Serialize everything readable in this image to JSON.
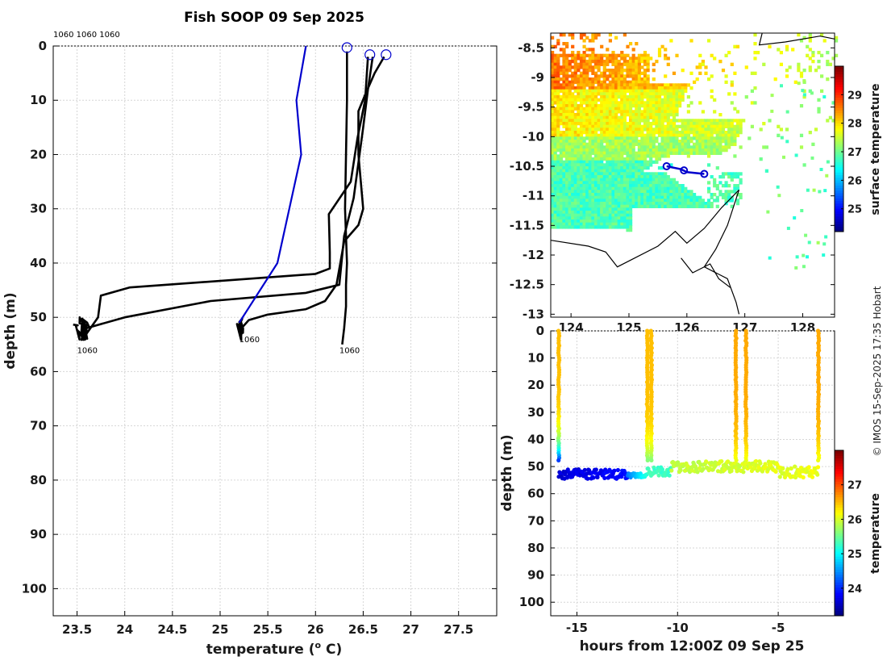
{
  "title": "Fish SOOP 09 Sep 2025",
  "credit": "© IMOS 15-Sep-2025 17:35 Hobart",
  "chart_data": [
    {
      "type": "line",
      "name": "temperature-profiles",
      "xlabel": "temperature (o C)",
      "xlabel_main": "temperature (",
      "xlabel_sup": "o",
      "xlabel_end": " C)",
      "ylabel": "depth (m)",
      "xlim": [
        23.25,
        27.9
      ],
      "ylim": [
        105,
        0
      ],
      "xticks": [
        "23.5",
        "24",
        "24.5",
        "25",
        "25.5",
        "26",
        "26.5",
        "27",
        "27.5"
      ],
      "yticks": [
        "0",
        "10",
        "20",
        "30",
        "40",
        "50",
        "60",
        "70",
        "80",
        "90",
        "100"
      ],
      "top_labels": "1060 1060 1060",
      "grid": true,
      "series": [
        {
          "name": "profile-1",
          "color": "#000000",
          "points": [
            [
              26.33,
              1
            ],
            [
              26.33,
              5
            ],
            [
              26.33,
              10
            ],
            [
              26.32,
              20
            ],
            [
              26.31,
              30
            ],
            [
              26.33,
              40
            ],
            [
              26.32,
              44
            ],
            [
              26.32,
              48
            ],
            [
              26.3,
              52
            ],
            [
              26.28,
              55
            ]
          ]
        },
        {
          "name": "profile-2",
          "color": "#000000",
          "points": [
            [
              26.55,
              2
            ],
            [
              26.52,
              10
            ],
            [
              26.44,
              17
            ],
            [
              26.37,
              25
            ],
            [
              26.14,
              31
            ],
            [
              26.15,
              38
            ],
            [
              26.15,
              41
            ],
            [
              26.0,
              42
            ],
            [
              24.05,
              44.5
            ],
            [
              23.75,
              46
            ],
            [
              23.72,
              50
            ],
            [
              23.6,
              53
            ],
            [
              23.48,
              55
            ]
          ]
        },
        {
          "name": "profile-3",
          "color": "#000000",
          "points": [
            [
              26.72,
              2
            ],
            [
              26.62,
              5
            ],
            [
              26.52,
              9
            ],
            [
              26.45,
              12
            ],
            [
              26.45,
              20
            ],
            [
              26.5,
              30
            ],
            [
              26.45,
              33
            ],
            [
              26.3,
              36
            ],
            [
              26.22,
              44
            ],
            [
              26.1,
              47
            ],
            [
              25.9,
              48.5
            ],
            [
              25.5,
              49.5
            ],
            [
              25.3,
              50.5
            ],
            [
              25.2,
              52.5
            ],
            [
              25.22,
              54
            ]
          ]
        },
        {
          "name": "profile-4",
          "color": "#000000",
          "points": [
            [
              26.6,
              2
            ],
            [
              26.55,
              8
            ],
            [
              26.5,
              15
            ],
            [
              26.4,
              28
            ],
            [
              26.3,
              35
            ],
            [
              26.25,
              44
            ],
            [
              25.9,
              45.5
            ],
            [
              24.9,
              47
            ],
            [
              24.0,
              50
            ],
            [
              23.6,
              52
            ],
            [
              23.55,
              54
            ]
          ]
        },
        {
          "name": "xbt-reference",
          "color": "#0000cd",
          "points": [
            [
              25.9,
              0
            ],
            [
              25.85,
              5
            ],
            [
              25.8,
              10
            ],
            [
              25.85,
              20
            ],
            [
              25.6,
              40
            ],
            [
              25.2,
              51
            ]
          ]
        }
      ]
    },
    {
      "type": "heatmap",
      "name": "surface-temperature-map",
      "xlim": [
        123.65,
        128.55
      ],
      "ylim": [
        -13.05,
        -8.25
      ],
      "xticks": [
        "124",
        "125",
        "126",
        "127",
        "128"
      ],
      "yticks": [
        "-8.5",
        "-9",
        "-9.5",
        "-10",
        "-10.5",
        "-11",
        "-11.5",
        "-12",
        "-12.5",
        "-13"
      ],
      "colorbar_label": "surface temperature",
      "colorbar_ticks": [
        "25",
        "26",
        "27",
        "28",
        "29"
      ],
      "colorbar_range": [
        24.2,
        30.0
      ],
      "track": [
        [
          125.65,
          -10.5
        ],
        [
          125.9,
          -10.55
        ],
        [
          126.0,
          -10.6
        ],
        [
          126.3,
          -10.63
        ]
      ],
      "markers": [
        [
          125.65,
          -10.5
        ],
        [
          125.95,
          -10.57
        ],
        [
          126.3,
          -10.63
        ]
      ]
    },
    {
      "type": "scatter",
      "name": "depth-time-section",
      "xlabel": "hours from 12:00Z 09 Sep 25",
      "ylabel": "depth (m)",
      "xlim": [
        -16.3,
        -2.2
      ],
      "ylim": [
        105,
        0
      ],
      "xticks": [
        "-15",
        "-10",
        "-5"
      ],
      "yticks": [
        "0",
        "10",
        "20",
        "30",
        "40",
        "50",
        "60",
        "70",
        "80",
        "90",
        "100"
      ],
      "colorbar_label": "temperature",
      "colorbar_ticks": [
        "24",
        "25",
        "26",
        "27"
      ],
      "colorbar_range": [
        23.2,
        28.0
      ]
    }
  ]
}
